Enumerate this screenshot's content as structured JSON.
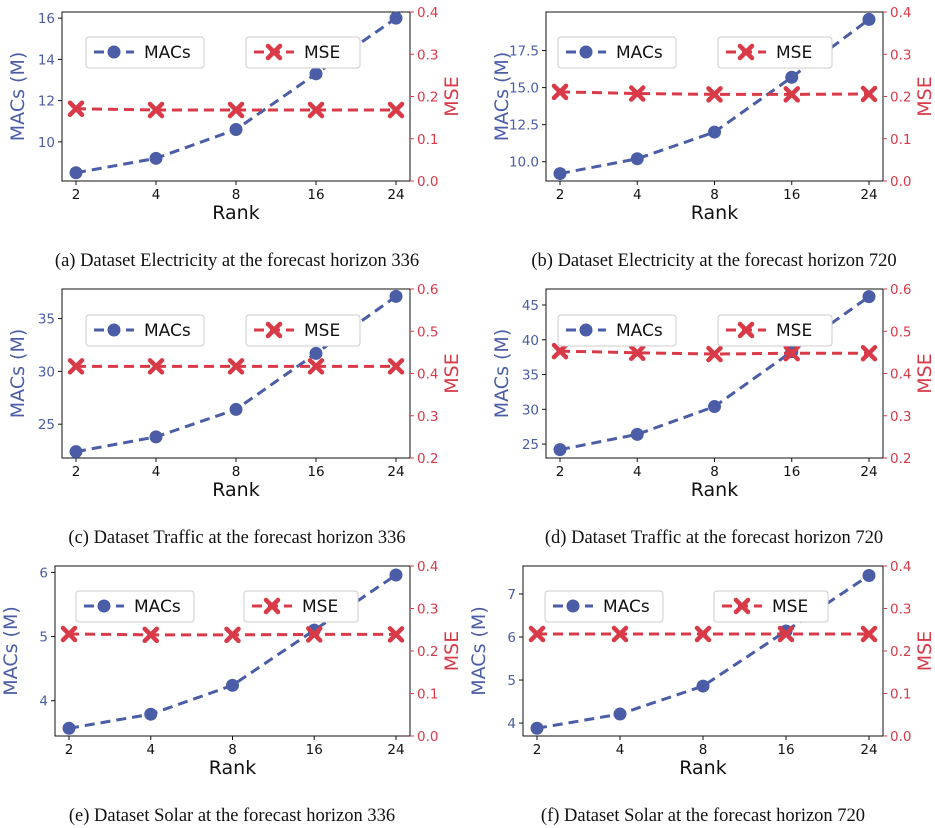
{
  "colors": {
    "macs": "#4a5da6",
    "mse": "#d83a48",
    "axis": "#111111"
  },
  "chart_data": [
    {
      "type": "line",
      "caption": "(a) Dataset Electricity at the forecast horizon 336",
      "xlabel": "Rank",
      "ylabel_left": "MACs (M)",
      "ylabel_right": "MSE",
      "categories": [
        "2",
        "4",
        "8",
        "16",
        "24"
      ],
      "legend": [
        "MACs",
        "MSE"
      ],
      "y_left": {
        "lim": [
          8.1,
          16.3
        ],
        "ticks": [
          "10",
          "12",
          "14",
          "16"
        ]
      },
      "y_right": {
        "lim": [
          0.0,
          0.4
        ],
        "ticks": [
          "0.0",
          "0.1",
          "0.2",
          "0.3",
          "0.4"
        ]
      },
      "series": [
        {
          "name": "MACs",
          "axis": "left",
          "marker": "circle",
          "values": [
            8.5,
            9.2,
            10.6,
            13.3,
            16.0
          ]
        },
        {
          "name": "MSE",
          "axis": "right",
          "marker": "x",
          "values": [
            0.171,
            0.168,
            0.168,
            0.168,
            0.168
          ]
        }
      ]
    },
    {
      "type": "line",
      "caption": "(b) Dataset Electricity at the forecast horizon 720",
      "xlabel": "Rank",
      "ylabel_left": "MACs (M)",
      "ylabel_right": "MSE",
      "categories": [
        "2",
        "4",
        "8",
        "16",
        "24"
      ],
      "legend": [
        "MACs",
        "MSE"
      ],
      "y_left": {
        "lim": [
          8.7,
          20.1
        ],
        "ticks": [
          "10.0",
          "12.5",
          "15.0",
          "17.5"
        ]
      },
      "y_right": {
        "lim": [
          0.0,
          0.4
        ],
        "ticks": [
          "0.0",
          "0.1",
          "0.2",
          "0.3",
          "0.4"
        ]
      },
      "series": [
        {
          "name": "MACs",
          "axis": "left",
          "marker": "circle",
          "values": [
            9.2,
            10.2,
            12.0,
            15.7,
            19.6
          ]
        },
        {
          "name": "MSE",
          "axis": "right",
          "marker": "x",
          "values": [
            0.211,
            0.207,
            0.205,
            0.205,
            0.206
          ]
        }
      ]
    },
    {
      "type": "line",
      "caption": "(c) Dataset Traffic at the forecast horizon 336",
      "xlabel": "Rank",
      "ylabel_left": "MACs (M)",
      "ylabel_right": "MSE",
      "categories": [
        "2",
        "4",
        "8",
        "16",
        "24"
      ],
      "legend": [
        "MACs",
        "MSE"
      ],
      "y_left": {
        "lim": [
          21.8,
          37.8
        ],
        "ticks": [
          "25",
          "30",
          "35"
        ]
      },
      "y_right": {
        "lim": [
          0.2,
          0.6
        ],
        "ticks": [
          "0.2",
          "0.3",
          "0.4",
          "0.5",
          "0.6"
        ]
      },
      "series": [
        {
          "name": "MACs",
          "axis": "left",
          "marker": "circle",
          "values": [
            22.4,
            23.8,
            26.4,
            31.7,
            37.1
          ]
        },
        {
          "name": "MSE",
          "axis": "right",
          "marker": "x",
          "values": [
            0.417,
            0.417,
            0.417,
            0.417,
            0.417
          ]
        }
      ]
    },
    {
      "type": "line",
      "caption": "(d) Dataset Traffic at the forecast horizon 720",
      "xlabel": "Rank",
      "ylabel_left": "MACs (M)",
      "ylabel_right": "MSE",
      "categories": [
        "2",
        "4",
        "8",
        "16",
        "24"
      ],
      "legend": [
        "MACs",
        "MSE"
      ],
      "y_left": {
        "lim": [
          23.0,
          47.3
        ],
        "ticks": [
          "25",
          "30",
          "35",
          "40",
          "45"
        ]
      },
      "y_right": {
        "lim": [
          0.2,
          0.6
        ],
        "ticks": [
          "0.2",
          "0.3",
          "0.4",
          "0.5",
          "0.6"
        ]
      },
      "series": [
        {
          "name": "MACs",
          "axis": "left",
          "marker": "circle",
          "values": [
            24.2,
            26.4,
            30.4,
            38.3,
            46.2
          ]
        },
        {
          "name": "MSE",
          "axis": "right",
          "marker": "x",
          "values": [
            0.453,
            0.449,
            0.446,
            0.448,
            0.448
          ]
        }
      ]
    },
    {
      "type": "line",
      "caption": "(e) Dataset Solar at the forecast horizon 336",
      "xlabel": "Rank",
      "ylabel_left": "MACs (M)",
      "ylabel_right": "MSE",
      "categories": [
        "2",
        "4",
        "8",
        "16",
        "24"
      ],
      "legend": [
        "MACs",
        "MSE"
      ],
      "y_left": {
        "lim": [
          3.45,
          6.1
        ],
        "ticks": [
          "4",
          "5",
          "6"
        ]
      },
      "y_right": {
        "lim": [
          0.0,
          0.4
        ],
        "ticks": [
          "0.0",
          "0.1",
          "0.2",
          "0.3",
          "0.4"
        ]
      },
      "series": [
        {
          "name": "MACs",
          "axis": "left",
          "marker": "circle",
          "values": [
            3.57,
            3.79,
            4.24,
            5.1,
            5.96
          ]
        },
        {
          "name": "MSE",
          "axis": "right",
          "marker": "x",
          "values": [
            0.24,
            0.238,
            0.238,
            0.239,
            0.239
          ]
        }
      ]
    },
    {
      "type": "line",
      "caption": "(f) Dataset Solar at the forecast horizon 720",
      "xlabel": "Rank",
      "ylabel_left": "MACs (M)",
      "ylabel_right": "MSE",
      "categories": [
        "2",
        "4",
        "8",
        "16",
        "24"
      ],
      "legend": [
        "MACs",
        "MSE"
      ],
      "y_left": {
        "lim": [
          3.7,
          7.65
        ],
        "ticks": [
          "4",
          "5",
          "6",
          "7"
        ]
      },
      "y_right": {
        "lim": [
          0.0,
          0.4
        ],
        "ticks": [
          "0.0",
          "0.1",
          "0.2",
          "0.3",
          "0.4"
        ]
      },
      "series": [
        {
          "name": "MACs",
          "axis": "left",
          "marker": "circle",
          "values": [
            3.88,
            4.21,
            4.86,
            6.14,
            7.43
          ]
        },
        {
          "name": "MSE",
          "axis": "right",
          "marker": "x",
          "values": [
            0.24,
            0.24,
            0.24,
            0.24,
            0.24
          ]
        }
      ]
    }
  ]
}
